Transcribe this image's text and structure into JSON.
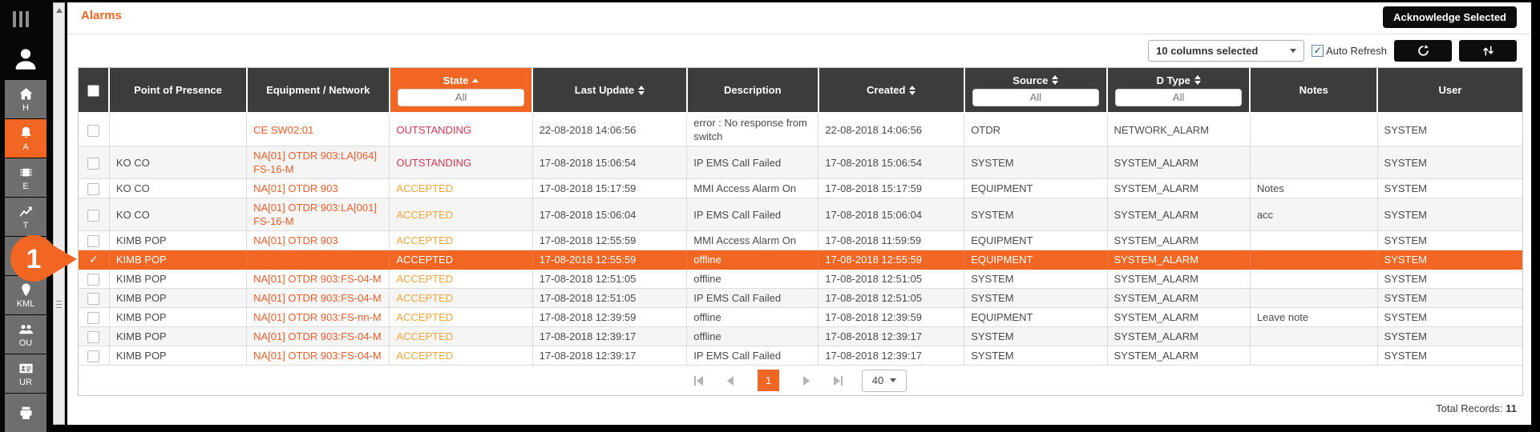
{
  "page": {
    "title": "Alarms"
  },
  "toolbar": {
    "acknowledge_label": "Acknowledge Selected",
    "columns_selected": "10 columns selected",
    "auto_refresh_label": "Auto Refresh",
    "auto_refresh_checked": true
  },
  "sidebar": {
    "items": [
      {
        "id": "home",
        "label": "H",
        "icon": "home-icon",
        "active": false
      },
      {
        "id": "alarms",
        "label": "A",
        "icon": "bell-icon",
        "active": true
      },
      {
        "id": "equipment",
        "label": "E",
        "icon": "chip-icon",
        "active": false
      },
      {
        "id": "trends",
        "label": "T",
        "icon": "chart-icon",
        "active": false
      },
      {
        "id": "monitor",
        "label": "M",
        "icon": "monitor-icon",
        "active": false
      },
      {
        "id": "kml",
        "label": "KML",
        "icon": "pin-icon",
        "active": false
      },
      {
        "id": "ou",
        "label": "OU",
        "icon": "people-icon",
        "active": false
      },
      {
        "id": "ur",
        "label": "UR",
        "icon": "id-card-icon",
        "active": false
      },
      {
        "id": "more",
        "label": "",
        "icon": "printer-icon",
        "active": false
      }
    ]
  },
  "annotation": {
    "step_number": "1"
  },
  "table": {
    "columns": [
      {
        "key": "pop",
        "label": "Point of Presence",
        "sort": null,
        "filter": null
      },
      {
        "key": "equipment",
        "label": "Equipment / Network",
        "sort": null,
        "filter": null
      },
      {
        "key": "state",
        "label": "State",
        "sort": "asc",
        "filter": "All",
        "highlight": true
      },
      {
        "key": "last_update",
        "label": "Last Update",
        "sort": "both",
        "filter": null
      },
      {
        "key": "description",
        "label": "Description",
        "sort": null,
        "filter": null
      },
      {
        "key": "created",
        "label": "Created",
        "sort": "both",
        "filter": null
      },
      {
        "key": "source",
        "label": "Source",
        "sort": "both",
        "filter": "All"
      },
      {
        "key": "d_type",
        "label": "D Type",
        "sort": "both",
        "filter": "All"
      },
      {
        "key": "notes",
        "label": "Notes",
        "sort": null,
        "filter": null
      },
      {
        "key": "user",
        "label": "User",
        "sort": null,
        "filter": null
      }
    ],
    "rows": [
      {
        "pop": "",
        "equipment": "CE SW02:01",
        "state": "OUTSTANDING",
        "last_update": "22-08-2018 14:06:56",
        "description": "error : No response from switch",
        "created": "22-08-2018 14:06:56",
        "source": "OTDR",
        "d_type": "NETWORK_ALARM",
        "notes": "",
        "user": "SYSTEM",
        "selected": false
      },
      {
        "pop": "KO CO",
        "equipment": "NA[01] OTDR 903:LA[064] FS-16-M",
        "state": "OUTSTANDING",
        "last_update": "17-08-2018 15:06:54",
        "description": "IP EMS Call Failed",
        "created": "17-08-2018 15:06:54",
        "source": "SYSTEM",
        "d_type": "SYSTEM_ALARM",
        "notes": "",
        "user": "SYSTEM",
        "selected": false
      },
      {
        "pop": "KO CO",
        "equipment": "NA[01] OTDR 903",
        "state": "ACCEPTED",
        "last_update": "17-08-2018 15:17:59",
        "description": "MMI Access Alarm On",
        "created": "17-08-2018 15:17:59",
        "source": "EQUIPMENT",
        "d_type": "SYSTEM_ALARM",
        "notes": "Notes",
        "user": "SYSTEM",
        "selected": false
      },
      {
        "pop": "KO CO",
        "equipment": "NA[01] OTDR 903:LA[001] FS-16-M",
        "state": "ACCEPTED",
        "last_update": "17-08-2018 15:06:04",
        "description": "IP EMS Call Failed",
        "created": "17-08-2018 15:06:04",
        "source": "SYSTEM",
        "d_type": "SYSTEM_ALARM",
        "notes": "acc",
        "user": "SYSTEM",
        "selected": false
      },
      {
        "pop": "KIMB POP",
        "equipment": "NA[01] OTDR 903",
        "state": "ACCEPTED",
        "last_update": "17-08-2018 12:55:59",
        "description": "MMI Access Alarm On",
        "created": "17-08-2018 11:59:59",
        "source": "EQUIPMENT",
        "d_type": "SYSTEM_ALARM",
        "notes": "",
        "user": "SYSTEM",
        "selected": false
      },
      {
        "pop": "KIMB POP",
        "equipment": "",
        "state": "ACCEPTED",
        "last_update": "17-08-2018 12:55:59",
        "description": "offline",
        "created": "17-08-2018 12:55:59",
        "source": "EQUIPMENT",
        "d_type": "SYSTEM_ALARM",
        "notes": "",
        "user": "SYSTEM",
        "selected": true
      },
      {
        "pop": "KIMB POP",
        "equipment": "NA[01] OTDR 903:FS-04-M",
        "state": "ACCEPTED",
        "last_update": "17-08-2018 12:51:05",
        "description": "offline",
        "created": "17-08-2018 12:51:05",
        "source": "SYSTEM",
        "d_type": "SYSTEM_ALARM",
        "notes": "",
        "user": "SYSTEM",
        "selected": false
      },
      {
        "pop": "KIMB POP",
        "equipment": "NA[01] OTDR 903:FS-04-M",
        "state": "ACCEPTED",
        "last_update": "17-08-2018 12:51:05",
        "description": "IP EMS Call Failed",
        "created": "17-08-2018 12:51:05",
        "source": "SYSTEM",
        "d_type": "SYSTEM_ALARM",
        "notes": "",
        "user": "SYSTEM",
        "selected": false
      },
      {
        "pop": "KIMB POP",
        "equipment": "NA[01] OTDR 903:FS-nn-M",
        "state": "ACCEPTED",
        "last_update": "17-08-2018 12:39:59",
        "description": "offline",
        "created": "17-08-2018 12:39:59",
        "source": "EQUIPMENT",
        "d_type": "SYSTEM_ALARM",
        "notes": "Leave note",
        "user": "SYSTEM",
        "selected": false
      },
      {
        "pop": "KIMB POP",
        "equipment": "NA[01] OTDR 903:FS-04-M",
        "state": "ACCEPTED",
        "last_update": "17-08-2018 12:39:17",
        "description": "offline",
        "created": "17-08-2018 12:39:17",
        "source": "SYSTEM",
        "d_type": "SYSTEM_ALARM",
        "notes": "",
        "user": "SYSTEM",
        "selected": false
      },
      {
        "pop": "KIMB POP",
        "equipment": "NA[01] OTDR 903:FS-04-M",
        "state": "ACCEPTED",
        "last_update": "17-08-2018 12:39:17",
        "description": "IP EMS Call Failed",
        "created": "17-08-2018 12:39:17",
        "source": "SYSTEM",
        "d_type": "SYSTEM_ALARM",
        "notes": "",
        "user": "SYSTEM",
        "selected": false
      }
    ]
  },
  "pagination": {
    "current_page": "1",
    "page_size": "40"
  },
  "footer": {
    "total_records_label": "Total Records:",
    "total_records_value": "11"
  }
}
